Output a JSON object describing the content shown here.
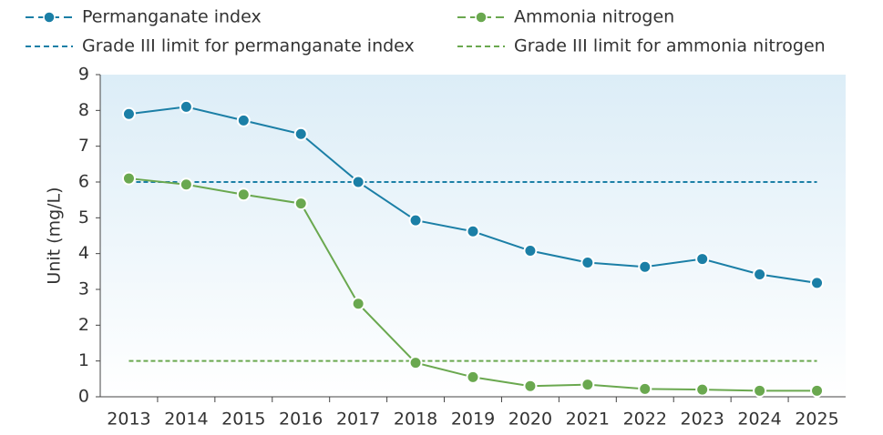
{
  "chart_data": {
    "type": "line",
    "categories": [
      "2013",
      "2014",
      "2015",
      "2016",
      "2017",
      "2018",
      "2019",
      "2020",
      "2021",
      "2022",
      "2023",
      "2024",
      "2025"
    ],
    "series": [
      {
        "name": "Permanganate index",
        "color": "#1b7fa6",
        "values": [
          7.9,
          8.1,
          7.72,
          7.34,
          6.0,
          4.93,
          4.62,
          4.08,
          3.75,
          3.63,
          3.85,
          3.42,
          3.18
        ]
      },
      {
        "name": "Ammonia nitrogen",
        "color": "#6aa84f",
        "values": [
          6.1,
          5.93,
          5.65,
          5.4,
          2.6,
          0.95,
          0.55,
          0.3,
          0.34,
          0.22,
          0.2,
          0.17,
          0.17
        ]
      }
    ],
    "limits": [
      {
        "name": "Grade III limit for permanganate index",
        "color": "#1b7fa6",
        "value": 6
      },
      {
        "name": "Grade III limit for ammonia nitrogen",
        "color": "#6aa84f",
        "value": 1
      }
    ],
    "ylabel": "Unit (mg/L)",
    "ylim": [
      0,
      9
    ],
    "yticks": [
      0,
      1,
      2,
      3,
      4,
      5,
      6,
      7,
      8,
      9
    ],
    "grid": false
  }
}
